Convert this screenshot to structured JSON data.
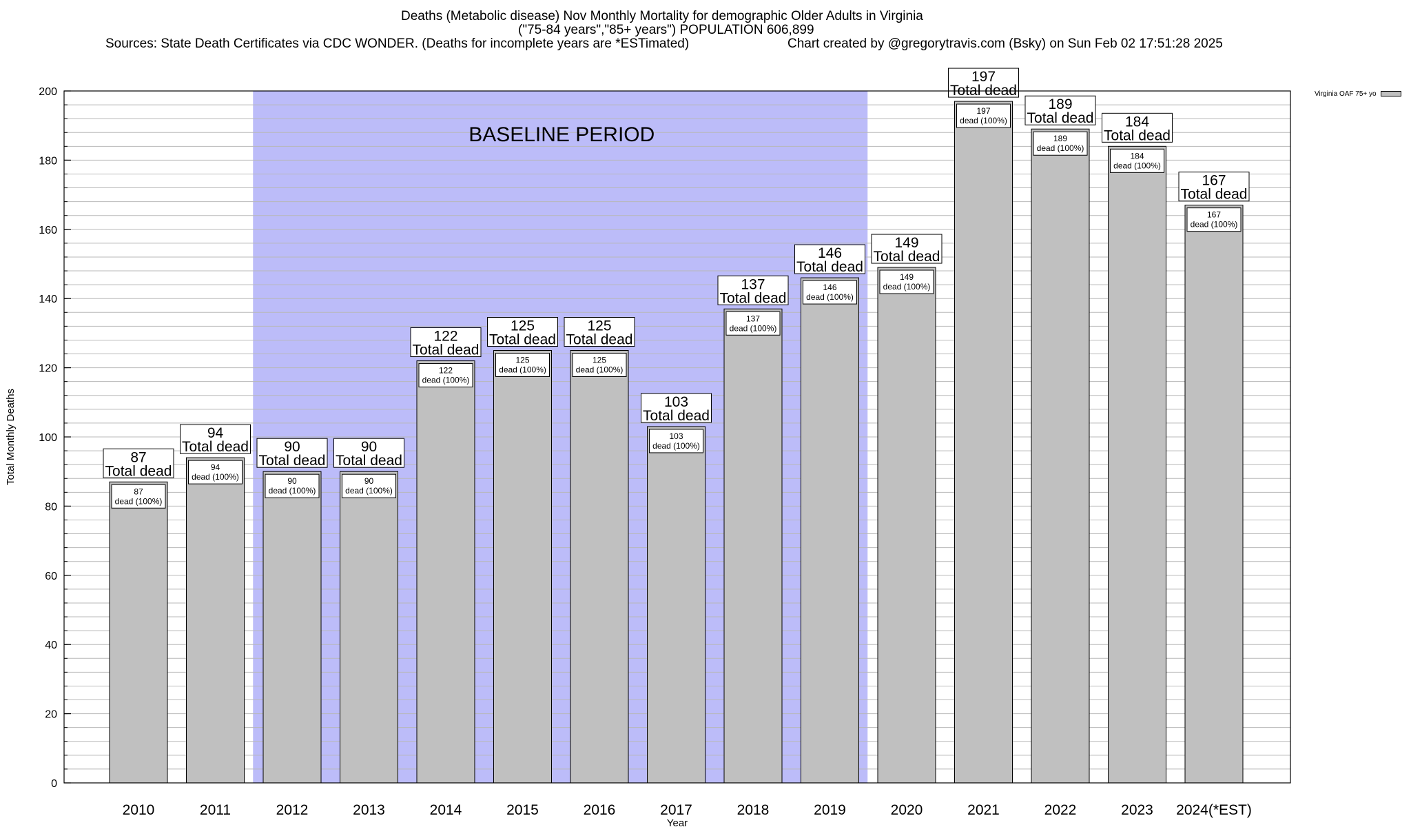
{
  "header": {
    "title_line1": "Deaths (Metabolic disease) Nov Monthly Mortality for demographic Older Adults in Virginia",
    "title_line2": "(\"75-84 years\",\"85+ years\") POPULATION 606,899",
    "sources": "Sources: State Death Certificates via CDC WONDER. (Deaths for incomplete years are *ESTimated)",
    "credit": "Chart created by @gregorytravis.com (Bsky) on Sun Feb 02 17:51:28 2025"
  },
  "legend": {
    "label": "Virginia OAF 75+ yo"
  },
  "colors": {
    "bar": "#c0c0c0",
    "baseline": "#bcbcf9",
    "grid": "#b8b8b8"
  },
  "chart_data": {
    "type": "bar",
    "categories": [
      "2010",
      "2011",
      "2012",
      "2013",
      "2014",
      "2015",
      "2016",
      "2017",
      "2018",
      "2019",
      "2020",
      "2021",
      "2022",
      "2023",
      "2024(*EST)"
    ],
    "values": [
      87,
      94,
      90,
      90,
      122,
      125,
      125,
      103,
      137,
      146,
      149,
      197,
      189,
      184,
      167
    ],
    "outer_label_suffix": "Total dead",
    "inner_label_suffix": "dead (100%)",
    "xlabel": "Year",
    "ylabel": "Total Monthly Deaths",
    "ylim": [
      0,
      200
    ],
    "yticks": [
      0,
      20,
      40,
      60,
      80,
      100,
      120,
      140,
      160,
      180,
      200
    ],
    "grid": true,
    "baseline": {
      "label": "BASELINE PERIOD",
      "from": "2012",
      "to": "2019"
    }
  }
}
